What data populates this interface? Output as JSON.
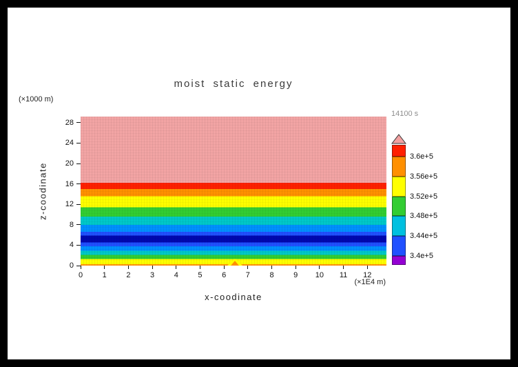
{
  "title": {
    "text": "moist static energy"
  },
  "timestamp": {
    "text": "14100 s"
  },
  "x_axis": {
    "label": "x-coodinate",
    "unit": "(×1E4 m)",
    "ticks": [
      "0",
      "1",
      "2",
      "3",
      "4",
      "5",
      "6",
      "7",
      "8",
      "9",
      "10",
      "11",
      "12"
    ]
  },
  "y_axis": {
    "label": "z-coodinate",
    "unit": "(×1000 m)",
    "ticks": [
      "0",
      "4",
      "8",
      "12",
      "16",
      "20",
      "24",
      "28"
    ]
  },
  "colorbar": {
    "labels_top_to_bottom": [
      "3.6e+5",
      "3.56e+5",
      "3.52e+5",
      "3.48e+5",
      "3.44e+5",
      "3.4e+5"
    ],
    "segments_bottom_to_top": [
      "#9400d3",
      "#2050ff",
      "#00c0e0",
      "#32cd32",
      "#ffff00",
      "#ff9000",
      "#ff2000"
    ],
    "arrow_color": "#f2a0a0"
  },
  "chart_data": {
    "type": "heatmap",
    "title": "moist static energy",
    "xlabel": "x-coodinate (×1E4 m)",
    "ylabel": "z-coodinate (×1000 m)",
    "time_label": "14100 s",
    "xlim": [
      0,
      12.8
    ],
    "ylim": [
      0,
      29.2
    ],
    "contour_levels": [
      340000,
      344000,
      348000,
      352000,
      356000,
      360000
    ],
    "legend": [
      {
        "color": "#9400d3",
        "range": "< 3.4e+5"
      },
      {
        "color": "#2050ff",
        "range": "3.4e+5 – 3.44e+5"
      },
      {
        "color": "#00c0e0",
        "range": "3.44e+5 – 3.48e+5"
      },
      {
        "color": "#32cd32",
        "range": "3.48e+5 – 3.52e+5"
      },
      {
        "color": "#ffff00",
        "range": "3.52e+5 – 3.56e+5"
      },
      {
        "color": "#ff9000",
        "range": "3.56e+5 – 3.6e+5"
      },
      {
        "color": "#ff2000",
        "range": "> 3.6e+5"
      },
      {
        "color": "#f2a0a0",
        "range": "above top level (arrow)"
      }
    ],
    "bands_bottom_to_top": [
      {
        "z_from": 0.0,
        "z_to": 0.3,
        "color": "#ff9000"
      },
      {
        "z_from": 0.3,
        "z_to": 1.3,
        "color": "#ffff00"
      },
      {
        "z_from": 1.3,
        "z_to": 2.1,
        "color": "#32cd32"
      },
      {
        "z_from": 2.1,
        "z_to": 2.9,
        "color": "#00c8c8"
      },
      {
        "z_from": 2.9,
        "z_to": 3.8,
        "color": "#0090ff"
      },
      {
        "z_from": 3.8,
        "z_to": 4.5,
        "color": "#2050ff"
      },
      {
        "z_from": 4.5,
        "z_to": 5.9,
        "color": "#0008b0"
      },
      {
        "z_from": 5.9,
        "z_to": 6.6,
        "color": "#2050ff"
      },
      {
        "z_from": 6.6,
        "z_to": 8.0,
        "color": "#0090ff"
      },
      {
        "z_from": 8.0,
        "z_to": 9.6,
        "color": "#00c8c8"
      },
      {
        "z_from": 9.6,
        "z_to": 11.4,
        "color": "#32cd32"
      },
      {
        "z_from": 11.4,
        "z_to": 13.6,
        "color": "#ffff00"
      },
      {
        "z_from": 13.6,
        "z_to": 15.0,
        "color": "#ff9000"
      },
      {
        "z_from": 15.0,
        "z_to": 16.2,
        "color": "#ff2000"
      },
      {
        "z_from": 16.2,
        "z_to": 29.2,
        "color": "#f2a4a4"
      }
    ],
    "surface_anomaly": {
      "x": 6.45,
      "color": "#ff9000"
    }
  }
}
